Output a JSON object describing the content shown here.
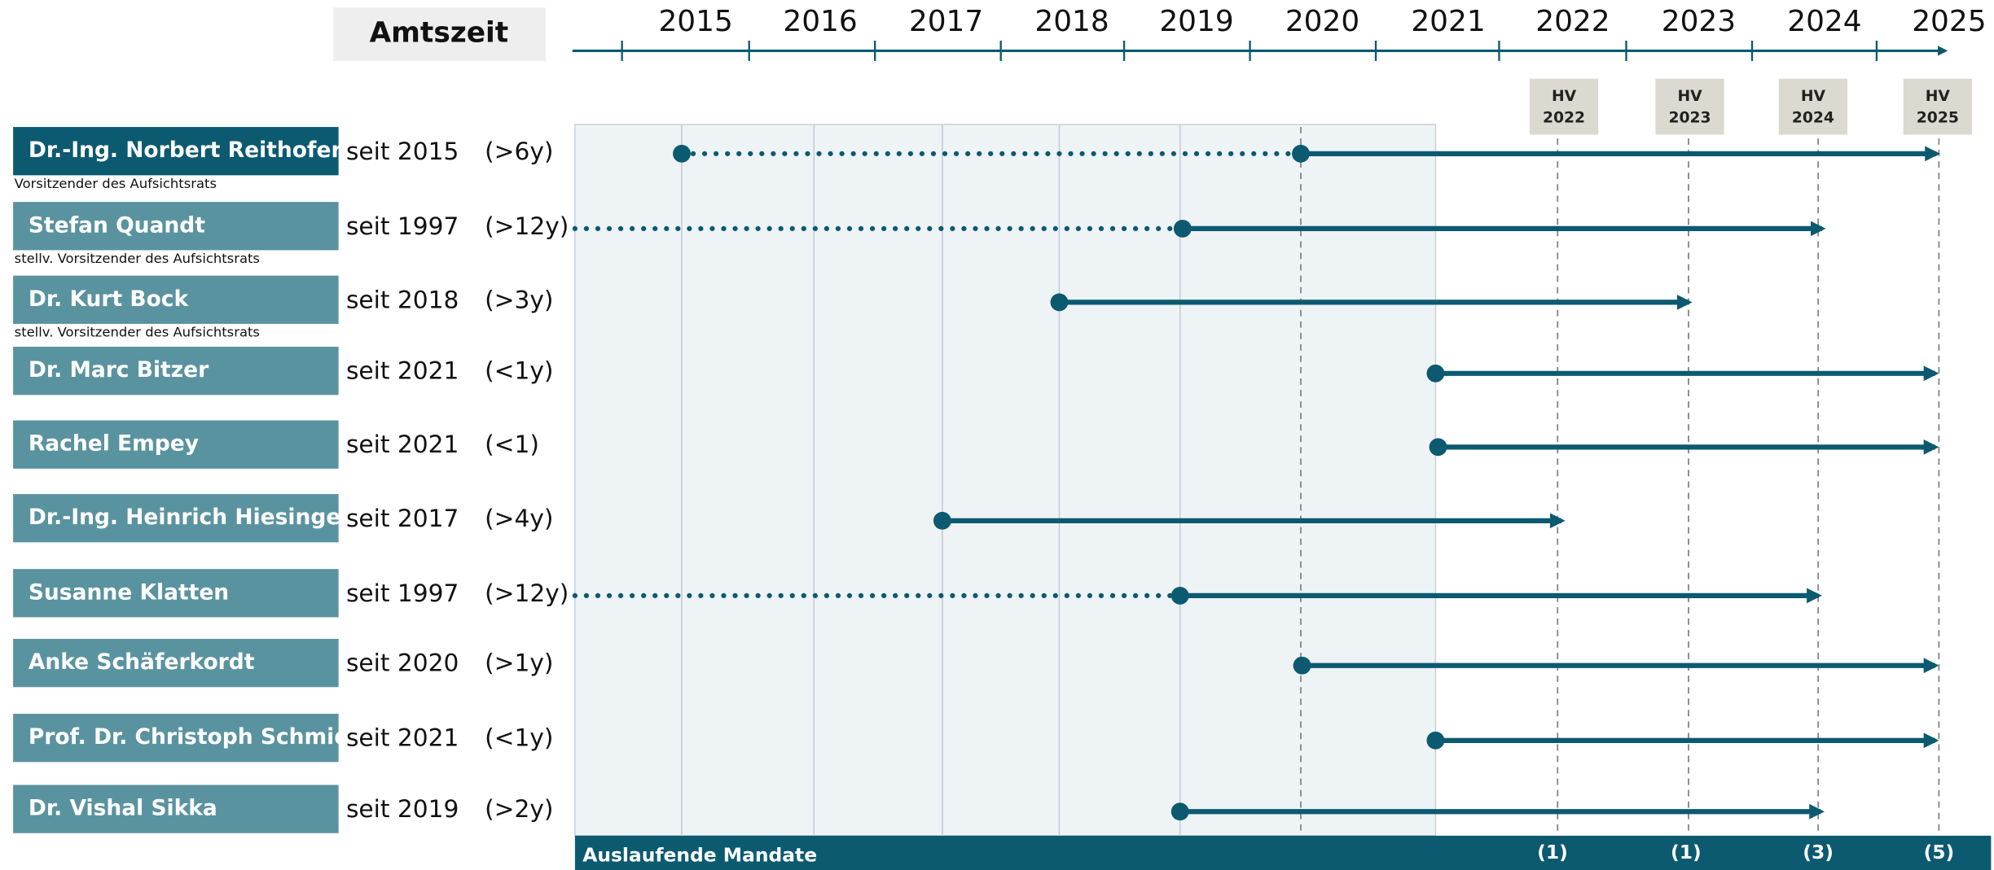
{
  "header": {
    "label": "Amtszeit",
    "years": [
      "2015",
      "2016",
      "2017",
      "2018",
      "2019",
      "2020",
      "2021",
      "2022",
      "2023",
      "2024",
      "2025"
    ]
  },
  "hv_markers": [
    {
      "line1": "HV",
      "line2": "2022"
    },
    {
      "line1": "HV",
      "line2": "2023"
    },
    {
      "line1": "HV",
      "line2": "2024"
    },
    {
      "line1": "HV",
      "line2": "2025"
    }
  ],
  "members": [
    {
      "name": "Dr.-Ing. Norbert Reithofer",
      "role": "Vorsitzender des Aufsichtsrats",
      "since": "seit 2015",
      "tenure": "(>6y)"
    },
    {
      "name": "Stefan Quandt",
      "role": "stellv. Vorsitzender des Aufsichtsrats",
      "since": "seit 1997",
      "tenure": "(>12y)"
    },
    {
      "name": "Dr. Kurt Bock",
      "role": "stellv. Vorsitzender des Aufsichtsrats",
      "since": "seit 2018",
      "tenure": "(>3y)"
    },
    {
      "name": "Dr. Marc Bitzer",
      "since": "seit 2021",
      "tenure": "(<1y)"
    },
    {
      "name": "Rachel Empey",
      "since": "seit 2021",
      "tenure": "(<1)"
    },
    {
      "name": "Dr.-Ing. Heinrich Hiesinger",
      "since": "seit 2017",
      "tenure": "(>4y)"
    },
    {
      "name": "Susanne Klatten",
      "since": "seit 1997",
      "tenure": "(>12y)"
    },
    {
      "name": "Anke Schäferkordt",
      "since": "seit 2020",
      "tenure": "(>1y)"
    },
    {
      "name": "Prof. Dr. Christoph Schmidt",
      "since": "seit 2021",
      "tenure": "(<1y)"
    },
    {
      "name": "Dr. Vishal Sikka",
      "since": "seit 2019",
      "tenure": "(>2y)"
    }
  ],
  "footer": {
    "label": "Auslaufende Mandate",
    "counts": [
      "(1)",
      "(1)",
      "(3)",
      "(5)"
    ]
  }
}
